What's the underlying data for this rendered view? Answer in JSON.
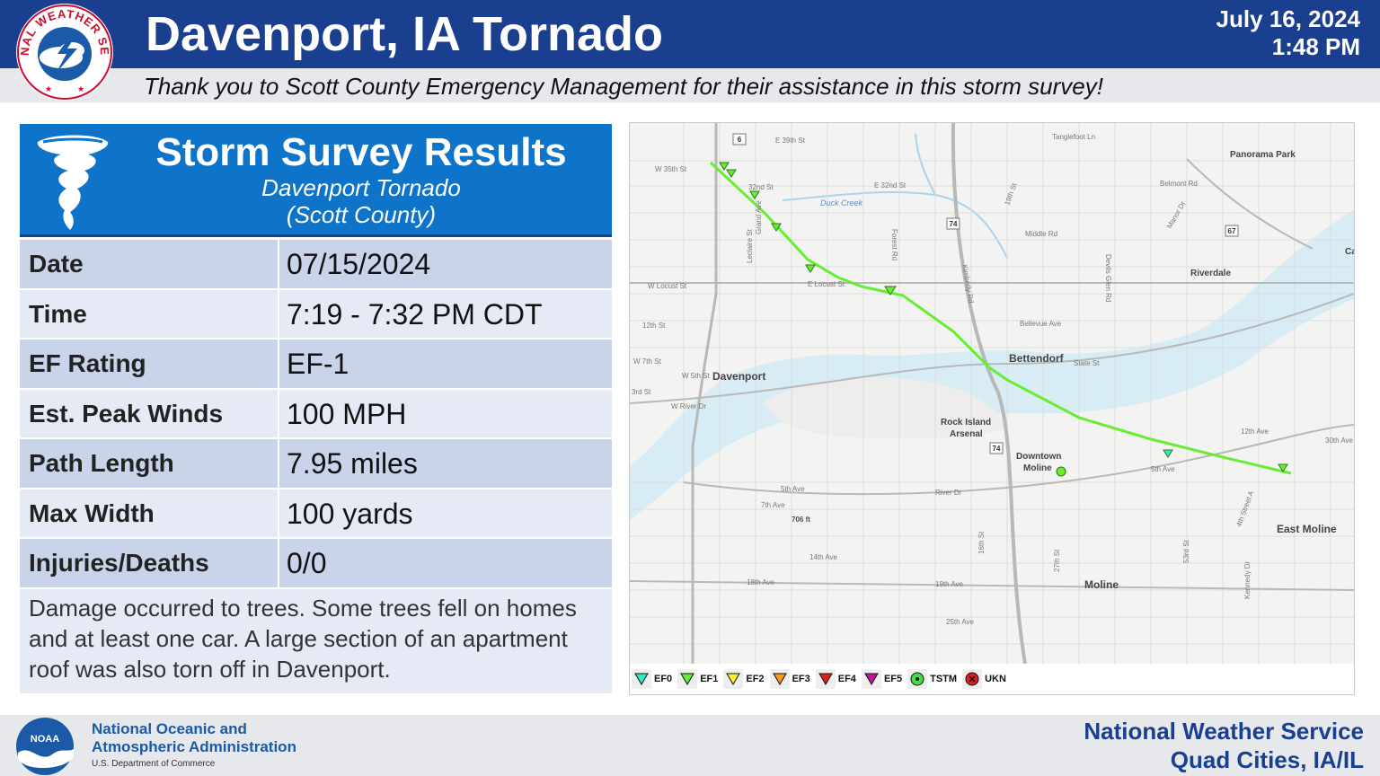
{
  "header": {
    "title": "Davenport, IA Tornado",
    "date": "July 16, 2024",
    "time": "1:48 PM",
    "thanks": "Thank you to Scott County Emergency Management for their assistance in this storm survey!"
  },
  "nws_logo": {
    "icon": "nws-seal-icon",
    "top_text": "NATIONAL WEATHER SERVICE"
  },
  "panel": {
    "title": "Storm Survey Results",
    "subtitle_line1": "Davenport Tornado",
    "subtitle_line2": "(Scott County)",
    "icon": "tornado-icon"
  },
  "table": {
    "rows": [
      {
        "label": "Date",
        "value": "07/15/2024"
      },
      {
        "label": "Time",
        "value": "7:19 - 7:32 PM CDT"
      },
      {
        "label": "EF Rating",
        "value": "EF-1"
      },
      {
        "label": "Est. Peak Winds",
        "value": "100 MPH"
      },
      {
        "label": "Path Length",
        "value": "7.95 miles"
      },
      {
        "label": "Max Width",
        "value": "100 yards"
      },
      {
        "label": "Injuries/Deaths",
        "value": "0/0"
      }
    ]
  },
  "description": "Damage occurred to trees. Some trees fell on homes and at least one car. A large section of an apartment roof was also torn off in Davenport.",
  "map": {
    "labels": {
      "davenport": "Davenport",
      "bettendorf": "Bettendorf",
      "rock_island_1": "Rock Island",
      "rock_island_2": "Arsenal",
      "downtown_1": "Downtown",
      "downtown_2": "Moline",
      "moline": "Moline",
      "east_moline": "East Moline",
      "riverdale": "Riverdale",
      "panorama_park": "Panorama Park",
      "duck_creek": "Duck Creek",
      "w35th": "W 35th St",
      "e39th": "E 39th St",
      "st32nd": "32nd St",
      "e32nd": "E 32nd St",
      "tanglefoot": "Tanglefoot Ln",
      "locust_w": "W Locust St",
      "locust_e": "E Locust St",
      "bellevue": "Bellevue Ave",
      "state_st": "State St",
      "w5th": "W 5th St",
      "river_dr": "W River Dr",
      "river_dr2": "River Dr",
      "ave5th": "5th Ave",
      "ave7th": "7th Ave",
      "ave5th_e": "5th Ave",
      "ave12th": "12th Ave",
      "ave14th": "14th Ave",
      "ave18th": "18th Ave",
      "ave19th": "19th Ave",
      "ave25th": "25th Ave",
      "elev": "706 ft",
      "middle_rd": "Middle Rd",
      "belmont": "Belmont Rd",
      "forest_rd": "Forest Rd",
      "kimberly": "Kimberly Rd",
      "grand_ave": "Grand Ave",
      "leclaire": "Leclaire St",
      "devils_glen": "Devils Glen Rd",
      "st_w7th": "W 7th St",
      "st_12th": "12th St",
      "st_3rd": "3rd St",
      "manor": "Manor Dr",
      "ave_30th": "30th Ave",
      "kennedy": "Kennedy Dr",
      "st_4th": "4th Street A",
      "st_53rd": "53rd St",
      "st_27th": "27th St",
      "st_16th": "16th St",
      "st_19th": "19th St",
      "car": "Car",
      "route_6": "6",
      "route_74": "74",
      "route_74b": "74",
      "route_67": "67"
    },
    "path_color": "#66ee33",
    "legend": [
      {
        "label": "EF0",
        "color": "#33e8c4",
        "icon": "ef0-triangle-icon"
      },
      {
        "label": "EF1",
        "color": "#66ee33",
        "icon": "ef1-triangle-icon"
      },
      {
        "label": "EF2",
        "color": "#ffee33",
        "icon": "ef2-triangle-icon"
      },
      {
        "label": "EF3",
        "color": "#f29a1a",
        "icon": "ef3-triangle-icon"
      },
      {
        "label": "EF4",
        "color": "#e01e1e",
        "icon": "ef4-triangle-icon"
      },
      {
        "label": "EF5",
        "color": "#c0168f",
        "icon": "ef5-triangle-icon"
      },
      {
        "label": "TSTM",
        "color": "#44dd44",
        "icon": "tstm-circle-icon"
      },
      {
        "label": "UKN",
        "color": "#e01e1e",
        "icon": "ukn-circle-icon"
      }
    ]
  },
  "footer": {
    "noaa_line1": "National Oceanic and",
    "noaa_line2": "Atmospheric Administration",
    "noaa_dept": "U.S. Department of Commerce",
    "noaa_logo_text": "NOAA",
    "nws_line1": "National Weather Service",
    "nws_line2": "Quad Cities, IA/IL"
  }
}
